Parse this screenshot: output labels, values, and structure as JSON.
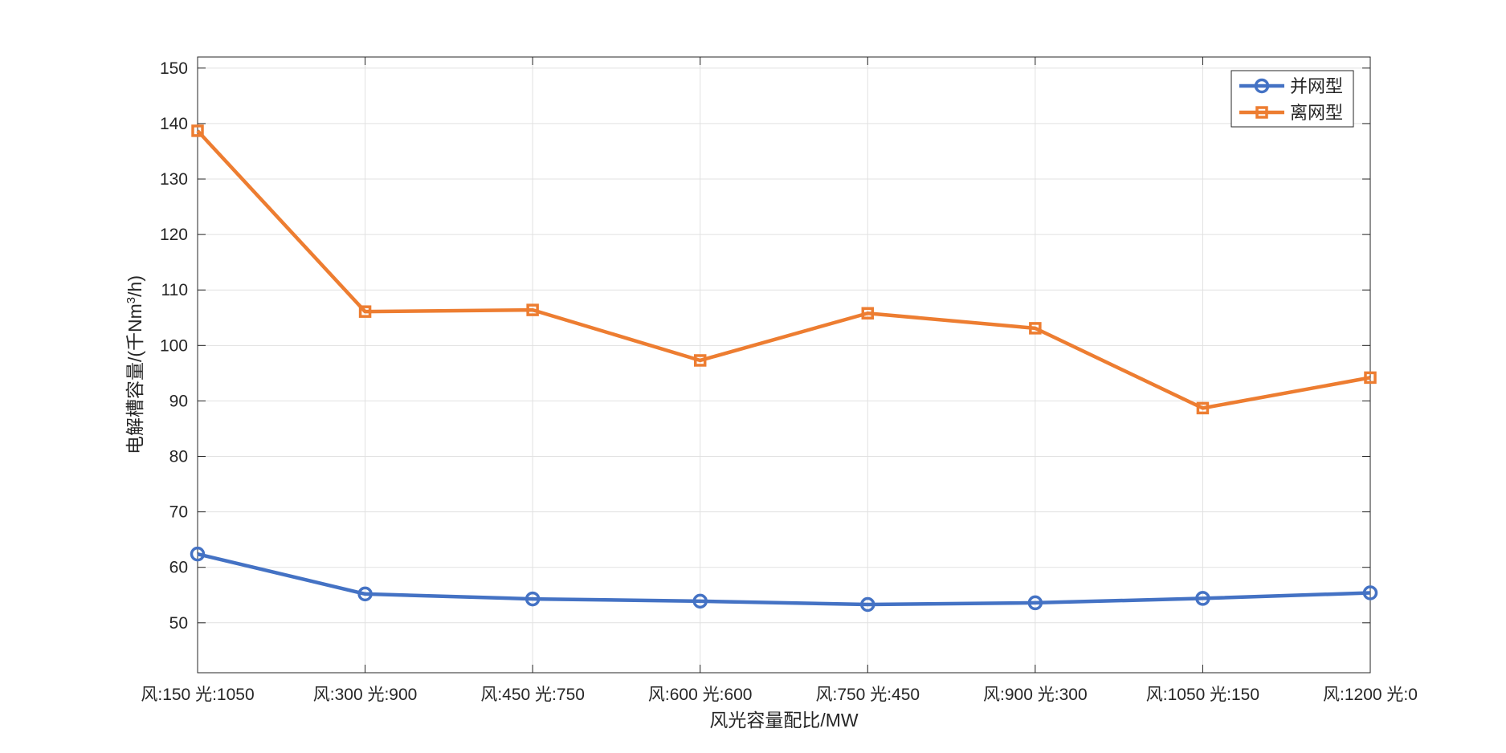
{
  "chart_data": {
    "type": "line",
    "title": "",
    "xlabel": "风光容量配比/MW",
    "ylabel": "电解槽容量/(千Nm³/h)",
    "ylabel_parts": {
      "before": "电解槽容量/(千Nm",
      "sup": "3",
      "after": "/h)"
    },
    "categories": [
      "风:150 光:1050",
      "风:300 光:900",
      "风:450 光:750",
      "风:600 光:600",
      "风:750 光:450",
      "风:900 光:300",
      "风:1050 光:150",
      "风:1200 光:0"
    ],
    "series": [
      {
        "name": "并网型",
        "color": "#4472c4",
        "marker": "circle",
        "values": [
          62.4,
          55.2,
          54.3,
          53.9,
          53.3,
          53.6,
          54.4,
          55.4
        ]
      },
      {
        "name": "离网型",
        "color": "#ed7d31",
        "marker": "square",
        "values": [
          138.7,
          106.1,
          106.4,
          97.3,
          105.8,
          103.1,
          88.7,
          94.2
        ]
      }
    ],
    "ylim": [
      41,
      152
    ],
    "yticks": [
      50,
      60,
      70,
      80,
      90,
      100,
      110,
      120,
      130,
      140,
      150
    ],
    "grid": true,
    "legend_position": "top-right"
  }
}
